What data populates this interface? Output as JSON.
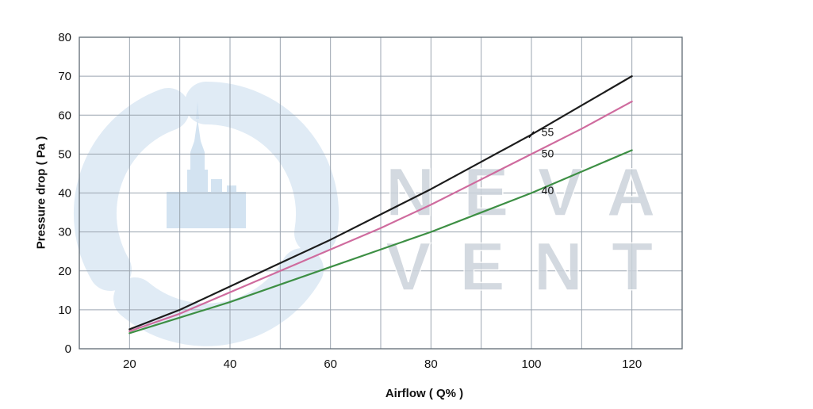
{
  "watermark": {
    "line1": "NEVA",
    "line2": "VENT"
  },
  "chart_data": {
    "type": "line",
    "title": "",
    "xlabel": "Airflow ( Q% )",
    "ylabel": "Pressure drop ( Pa )",
    "xlim": [
      10,
      130
    ],
    "ylim": [
      0,
      80
    ],
    "x_ticks": [
      20,
      40,
      60,
      80,
      100,
      120
    ],
    "y_ticks": [
      0,
      10,
      20,
      30,
      40,
      50,
      60,
      70,
      80
    ],
    "grid": true,
    "grid_step_x": 10,
    "grid_step_y": 10,
    "legend_position": "none",
    "series": [
      {
        "name": "55",
        "color": "#1c1c1c",
        "x": [
          20,
          30,
          40,
          50,
          60,
          70,
          80,
          90,
          100,
          110,
          120
        ],
        "y": [
          5,
          10,
          16,
          22,
          28,
          34.5,
          41,
          48,
          55,
          62.5,
          70
        ]
      },
      {
        "name": "50",
        "color": "#cf6b9e",
        "x": [
          20,
          30,
          40,
          50,
          60,
          70,
          80,
          90,
          100,
          110,
          120
        ],
        "y": [
          4.5,
          9,
          14.5,
          20,
          25.5,
          31,
          37,
          43.5,
          50,
          56.5,
          63.5
        ]
      },
      {
        "name": "40",
        "color": "#3d8f44",
        "x": [
          20,
          30,
          40,
          50,
          60,
          70,
          80,
          90,
          100,
          110,
          120
        ],
        "y": [
          4,
          8,
          12,
          16.5,
          21,
          25.5,
          30,
          35,
          40,
          45.5,
          51
        ]
      }
    ],
    "annotations": [
      {
        "text": "55",
        "x": 102,
        "y": 55.5,
        "marker": [
          100,
          55
        ]
      },
      {
        "text": "50",
        "x": 102,
        "y": 50
      },
      {
        "text": "40",
        "x": 102,
        "y": 40.5
      }
    ]
  }
}
